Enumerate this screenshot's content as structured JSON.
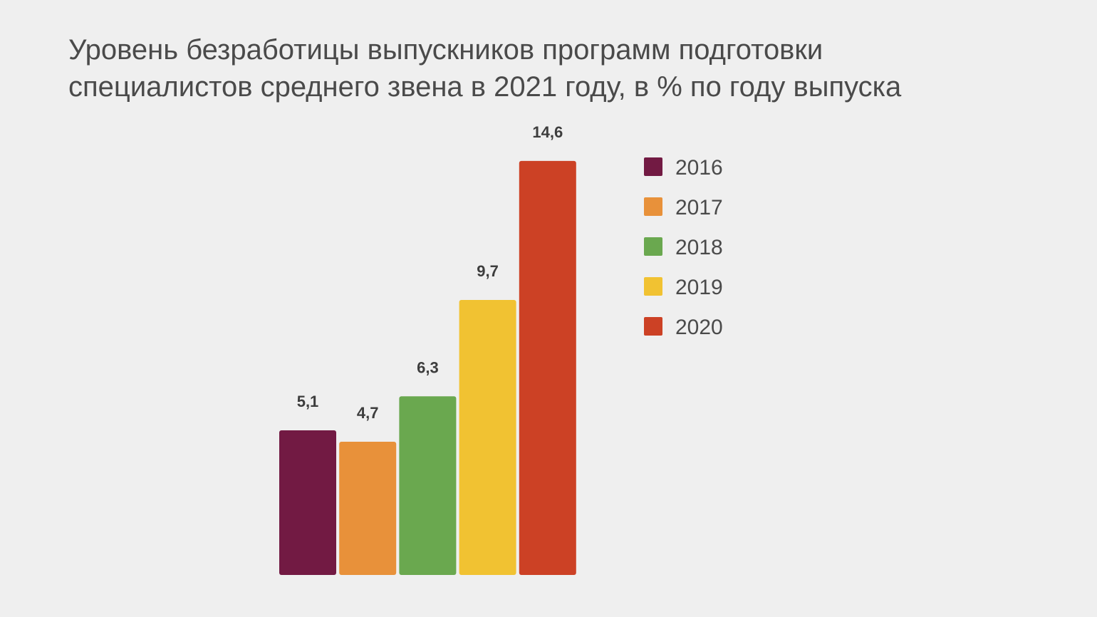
{
  "chart_data": {
    "type": "bar",
    "title_lines": [
      "Уровень безработицы выпускников программ подготовки",
      "специалистов среднего звена в 2021 году, в % по году выпуска"
    ],
    "categories": [
      "2016",
      "2017",
      "2018",
      "2019",
      "2020"
    ],
    "values": [
      5.1,
      4.7,
      6.3,
      9.7,
      14.6
    ],
    "value_labels": [
      "5,1",
      "4,7",
      "6,3",
      "9,7",
      "14,6"
    ],
    "colors": [
      "#721a43",
      "#e8913a",
      "#6aa84f",
      "#f1c232",
      "#cc4125"
    ],
    "ylim": [
      0,
      16
    ],
    "grid": false,
    "xlabel": "",
    "ylabel": "",
    "legend": {
      "position": "right",
      "entries": [
        "2016",
        "2017",
        "2018",
        "2019",
        "2020"
      ]
    }
  }
}
